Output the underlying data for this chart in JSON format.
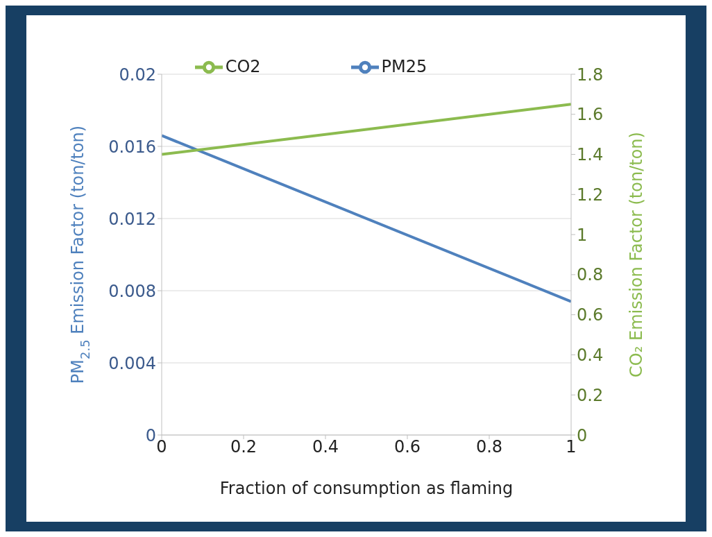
{
  "chart_data": {
    "type": "line",
    "xlabel": "Fraction of consumption as flaming",
    "ylabel": "PM$_{2.5}$ Emission Factor (ton/ton)",
    "y2label": "CO₂ Emission Factor (ton/ton)",
    "x": [
      0,
      1
    ],
    "series": [
      {
        "name": "PM25",
        "color": "#4f81bd",
        "values": [
          0.0166,
          0.0074
        ]
      },
      {
        "name": "CO2",
        "color": "#8cbb4f",
        "values": [
          1.4,
          1.65
        ],
        "axis": "y2"
      }
    ],
    "xlim": [
      0,
      1
    ],
    "xticks": [
      0,
      0.2,
      0.4,
      0.6,
      0.8,
      1
    ],
    "ylim": [
      0,
      0.02
    ],
    "yticks": [
      0,
      0.004,
      0.008,
      0.012,
      0.016,
      0.02
    ],
    "y2lim": [
      0,
      1.8
    ],
    "y2ticks": [
      0,
      0.2,
      0.4,
      0.6,
      0.8,
      1,
      1.2,
      1.4,
      1.6,
      1.8
    ],
    "grid": "y",
    "legend": "top",
    "marker": "none",
    "line_style": "solid"
  }
}
